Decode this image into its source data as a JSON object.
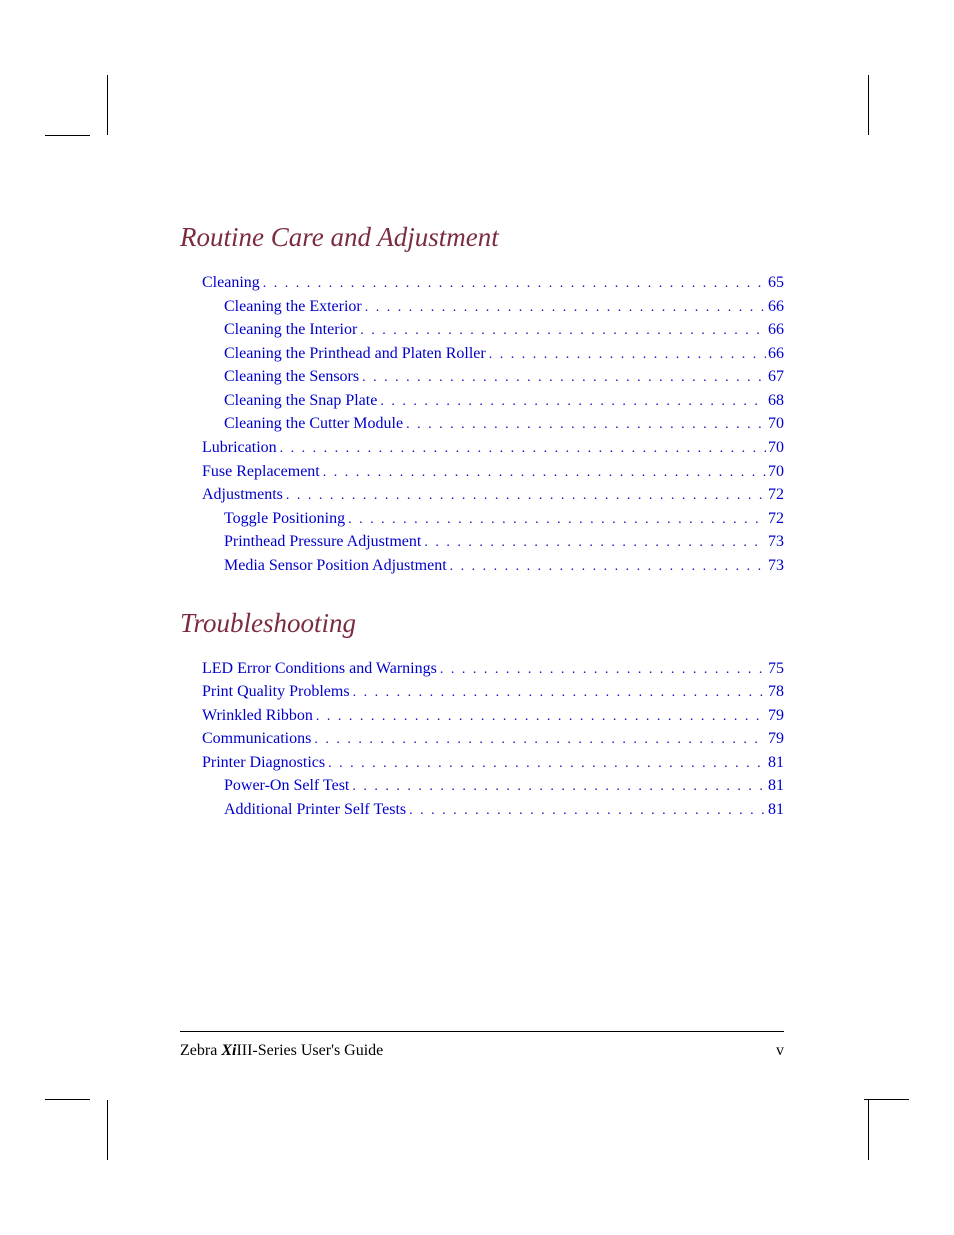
{
  "colors": {
    "section_title": "#7b2d3f",
    "link": "#0000cc",
    "text": "#000000",
    "background": "#ffffff"
  },
  "typography": {
    "section_title_fontsize": 27,
    "section_title_style": "italic",
    "toc_fontsize": 16,
    "footer_fontsize": 16,
    "font_family": "Times New Roman"
  },
  "sections": [
    {
      "title": "Routine Care and Adjustment",
      "entries": [
        {
          "label": "Cleaning",
          "page": "65",
          "indent": 0
        },
        {
          "label": "Cleaning the Exterior",
          "page": "66",
          "indent": 1
        },
        {
          "label": "Cleaning the Interior",
          "page": "66",
          "indent": 1
        },
        {
          "label": "Cleaning the Printhead and Platen Roller",
          "page": "66",
          "indent": 1
        },
        {
          "label": "Cleaning the Sensors",
          "page": "67",
          "indent": 1
        },
        {
          "label": "Cleaning the Snap Plate",
          "page": "68",
          "indent": 1
        },
        {
          "label": "Cleaning the Cutter Module",
          "page": "70",
          "indent": 1
        },
        {
          "label": "Lubrication",
          "page": "70",
          "indent": 0
        },
        {
          "label": "Fuse Replacement",
          "page": "70",
          "indent": 0
        },
        {
          "label": "Adjustments",
          "page": "72",
          "indent": 0
        },
        {
          "label": "Toggle Positioning",
          "page": "72",
          "indent": 1
        },
        {
          "label": "Printhead Pressure Adjustment",
          "page": "73",
          "indent": 1
        },
        {
          "label": "Media Sensor Position Adjustment",
          "page": "73",
          "indent": 1
        }
      ]
    },
    {
      "title": "Troubleshooting",
      "entries": [
        {
          "label": "LED Error Conditions and Warnings",
          "page": "75",
          "indent": 0
        },
        {
          "label": "Print Quality Problems",
          "page": "78",
          "indent": 0
        },
        {
          "label": "Wrinkled Ribbon",
          "page": "79",
          "indent": 0
        },
        {
          "label": "Communications",
          "page": "79",
          "indent": 0
        },
        {
          "label": "Printer Diagnostics",
          "page": "81",
          "indent": 0
        },
        {
          "label": "Power-On Self Test",
          "page": "81",
          "indent": 1
        },
        {
          "label": "Additional Printer Self Tests",
          "page": "81",
          "indent": 1
        }
      ]
    }
  ],
  "footer": {
    "brand_prefix": "Zebra ",
    "brand_xi": "Xi",
    "brand_suffix": "III-Series User's Guide",
    "page_number": "v"
  }
}
